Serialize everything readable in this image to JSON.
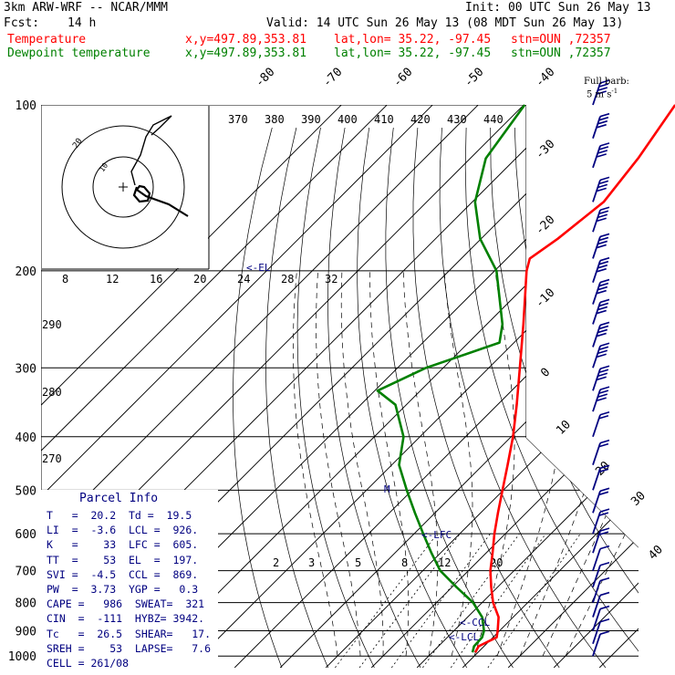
{
  "header": {
    "title": "3km ARW-WRF -- NCAR/MMM",
    "init": "Init: 00 UTC Sun 26 May 13",
    "fcst_label": "Fcst:",
    "fcst_value": "14 h",
    "valid": "Valid: 14 UTC Sun 26 May 13 (08 MDT Sun 26 May 13)",
    "temp_label": "Temperature",
    "dew_label": "Dewpoint temperature",
    "xy": "x,y=497.89,353.81",
    "latlon": "lat,lon= 35.22, -97.45",
    "stn": "stn=OUN ,72357"
  },
  "barb_legend": {
    "line1": "Full barb:",
    "line2": "5 m s",
    "sup": "-1"
  },
  "panel": {
    "title": "Parcel Info",
    "rows": [
      "T   =  20.2  Td =  19.5",
      "LI  =  -3.6  LCL =  926.",
      "K   =    33  LFC =  605.",
      "TT  =    53  EL  =  197.",
      "SVI =  -4.5  CCL =  869.",
      "PW  =  3.73  YGP =   0.3",
      "CAPE =   986  SWEAT=  321",
      "CIN  =  -111  HYBZ= 3942.",
      "Tc   =  26.5  SHEAR=   17.",
      "SREH =    53  LAPSE=   7.6",
      "CELL = 261/08"
    ]
  },
  "hodograph": {
    "kts_label": "kts",
    "ring_labels": [
      "20",
      "10"
    ]
  },
  "markers": {
    "el": "<-EL",
    "m": "M",
    "lfc": "<-LFC",
    "ccl": "<-CCL",
    "lcl": "<-LCL"
  },
  "chart_data": {
    "type": "line",
    "title": "",
    "xlabel": "",
    "ylabel": "",
    "x_axis": "temperature (degC), skewed",
    "y_axis": "pressure (hPa), log scale",
    "y_ticks": [
      100,
      200,
      300,
      400,
      500,
      600,
      700,
      800,
      900,
      1000
    ],
    "isotherm_labels": [
      -80,
      -70,
      -60,
      -50,
      -40,
      -30,
      -20,
      -10,
      0,
      10,
      20,
      30,
      40
    ],
    "theta_labels": [
      370,
      380,
      390,
      400,
      410,
      420,
      430,
      440
    ],
    "theta_labels_left": [
      290,
      280,
      270
    ],
    "wind_speed_labels": [
      8,
      12,
      16,
      20,
      24,
      28,
      32
    ],
    "mixing_ratio_labels": [
      2,
      3,
      5,
      8,
      12,
      20
    ],
    "grid": true,
    "series": [
      {
        "name": "Temperature",
        "color": "#ff0000",
        "points": [
          {
            "p": 985,
            "t": 19.4
          },
          {
            "p": 960,
            "t": 18.8
          },
          {
            "p": 925,
            "t": 20.8
          },
          {
            "p": 900,
            "t": 19.6
          },
          {
            "p": 850,
            "t": 16.8
          },
          {
            "p": 800,
            "t": 12.4
          },
          {
            "p": 750,
            "t": 8.6
          },
          {
            "p": 700,
            "t": 4.8
          },
          {
            "p": 650,
            "t": 1.4
          },
          {
            "p": 600,
            "t": -2.4
          },
          {
            "p": 550,
            "t": -6.2
          },
          {
            "p": 500,
            "t": -10.2
          },
          {
            "p": 450,
            "t": -14.6
          },
          {
            "p": 400,
            "t": -19.6
          },
          {
            "p": 350,
            "t": -25.8
          },
          {
            "p": 300,
            "t": -33.2
          },
          {
            "p": 250,
            "t": -42.0
          },
          {
            "p": 200,
            "t": -53.0
          },
          {
            "p": 190,
            "t": -55.0
          },
          {
            "p": 175,
            "t": -53.2
          },
          {
            "p": 150,
            "t": -51.2
          },
          {
            "p": 125,
            "t": -53.2
          },
          {
            "p": 100,
            "t": -56.8
          }
        ]
      },
      {
        "name": "Dewpoint temperature",
        "color": "#008000",
        "points": [
          {
            "p": 985,
            "t": 18.8
          },
          {
            "p": 960,
            "t": 17.8
          },
          {
            "p": 925,
            "t": 17.6
          },
          {
            "p": 900,
            "t": 16.6
          },
          {
            "p": 850,
            "t": 13.2
          },
          {
            "p": 800,
            "t": 8.0
          },
          {
            "p": 750,
            "t": 1.0
          },
          {
            "p": 700,
            "t": -6.2
          },
          {
            "p": 650,
            "t": -12.0
          },
          {
            "p": 600,
            "t": -18.0
          },
          {
            "p": 550,
            "t": -24.4
          },
          {
            "p": 500,
            "t": -31.2
          },
          {
            "p": 450,
            "t": -38.4
          },
          {
            "p": 400,
            "t": -43.6
          },
          {
            "p": 350,
            "t": -52.4
          },
          {
            "p": 330,
            "t": -59.4
          },
          {
            "p": 300,
            "t": -53.8
          },
          {
            "p": 270,
            "t": -43.2
          },
          {
            "p": 250,
            "t": -46.6
          },
          {
            "p": 200,
            "t": -59.6
          },
          {
            "p": 175,
            "t": -70.2
          },
          {
            "p": 150,
            "t": -79.4
          },
          {
            "p": 125,
            "t": -86.6
          },
          {
            "p": 100,
            "t": -89.8
          }
        ]
      }
    ],
    "wind_barbs_pressure_hPa": [
      100,
      115,
      130,
      150,
      170,
      190,
      210,
      230,
      250,
      275,
      300,
      330,
      360,
      400,
      450,
      500,
      550,
      600,
      650,
      700,
      750,
      800,
      850,
      900,
      950,
      1000
    ],
    "hodograph_ring_labels_kts": [
      20,
      10
    ]
  }
}
